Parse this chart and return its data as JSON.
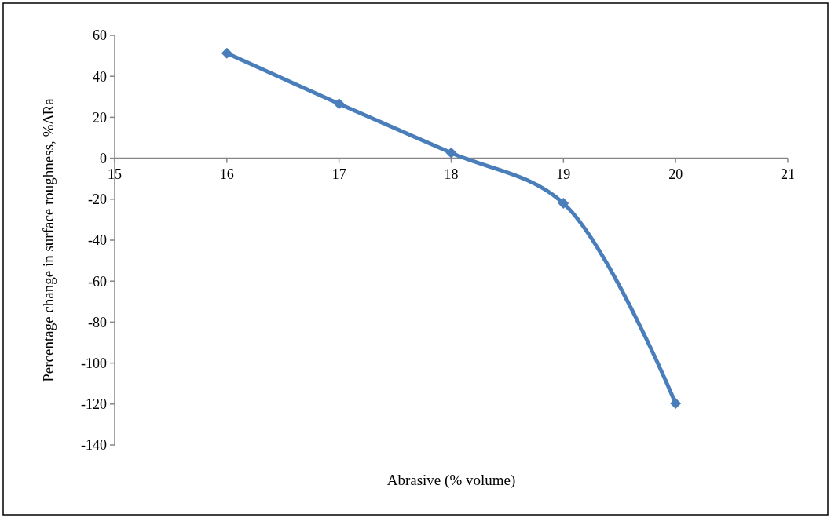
{
  "chart_data": {
    "type": "line",
    "xlabel": "Abrasive (% volume)",
    "ylabel": "Percentage change in surface roughness, %ΔRa",
    "x": [
      16,
      17,
      18,
      19,
      20
    ],
    "series": [
      {
        "color": "#4a7ebb",
        "values": [
          51.3,
          26.6,
          2.6,
          -22,
          -119.7
        ]
      }
    ],
    "xlim": [
      15,
      21
    ],
    "xticks": [
      15,
      16,
      17,
      18,
      19,
      20,
      21
    ],
    "ylim": [
      -140,
      60
    ],
    "yticks": [
      -140,
      -120,
      -100,
      -80,
      -60,
      -40,
      -20,
      0,
      20,
      40,
      60
    ],
    "marker": "diamond",
    "line_style": "solid"
  }
}
